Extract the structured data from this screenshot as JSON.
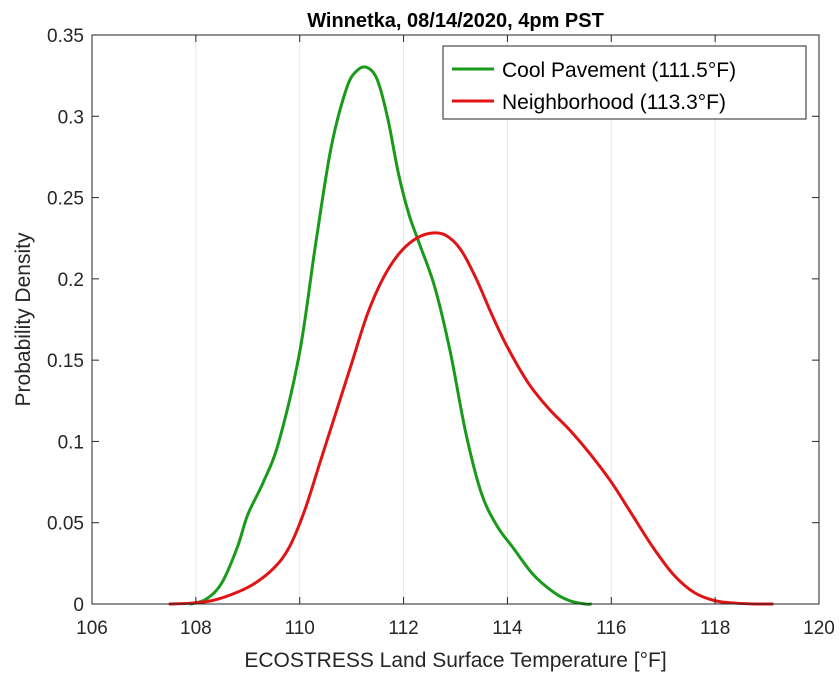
{
  "chart_data": {
    "type": "line",
    "title": "Winnetka, 08/14/2020, 4pm PST",
    "xlabel": "ECOSTRESS Land Surface Temperature [°F]",
    "ylabel": "Probability Density",
    "xlim": [
      106,
      120
    ],
    "ylim": [
      0,
      0.35
    ],
    "xticks": [
      106,
      108,
      110,
      112,
      114,
      116,
      118,
      120
    ],
    "yticks": [
      0,
      0.05,
      0.1,
      0.15,
      0.2,
      0.25,
      0.3,
      0.35
    ],
    "xtick_labels": [
      "106",
      "108",
      "110",
      "112",
      "114",
      "116",
      "118",
      "120"
    ],
    "ytick_labels": [
      "0",
      "0.05",
      "0.1",
      "0.15",
      "0.2",
      "0.25",
      "0.3",
      "0.35"
    ],
    "grid": "vertical",
    "legend_position": "top-right",
    "series": [
      {
        "name": "Cool Pavement (111.5°F)",
        "color": "#1a9a1a",
        "x": [
          107.9,
          108.2,
          108.5,
          108.8,
          109.0,
          109.3,
          109.6,
          110.0,
          110.3,
          110.6,
          110.9,
          111.1,
          111.3,
          111.5,
          111.7,
          111.9,
          112.1,
          112.3,
          112.6,
          112.9,
          113.2,
          113.5,
          113.8,
          114.1,
          114.5,
          114.9,
          115.2,
          115.5,
          115.6
        ],
        "y": [
          0.0,
          0.003,
          0.013,
          0.035,
          0.055,
          0.075,
          0.1,
          0.155,
          0.22,
          0.28,
          0.317,
          0.328,
          0.33,
          0.322,
          0.298,
          0.265,
          0.24,
          0.222,
          0.195,
          0.155,
          0.105,
          0.068,
          0.048,
          0.035,
          0.018,
          0.007,
          0.002,
          0.0,
          0.0
        ]
      },
      {
        "name": "Neighborhood (113.3°F)",
        "color": "#e01414",
        "x": [
          107.5,
          107.9,
          108.3,
          108.7,
          109.1,
          109.5,
          109.8,
          110.1,
          110.4,
          110.7,
          111.0,
          111.3,
          111.6,
          111.9,
          112.2,
          112.5,
          112.8,
          113.1,
          113.4,
          113.7,
          114.0,
          114.4,
          114.8,
          115.2,
          115.6,
          116.0,
          116.4,
          116.8,
          117.2,
          117.6,
          118.0,
          118.4,
          118.8,
          119.1
        ],
        "y": [
          0.0,
          0.0005,
          0.002,
          0.006,
          0.012,
          0.022,
          0.035,
          0.058,
          0.088,
          0.118,
          0.148,
          0.178,
          0.2,
          0.215,
          0.224,
          0.228,
          0.227,
          0.218,
          0.2,
          0.178,
          0.158,
          0.136,
          0.12,
          0.107,
          0.092,
          0.075,
          0.055,
          0.035,
          0.018,
          0.007,
          0.002,
          0.0005,
          0.0,
          0.0
        ]
      }
    ]
  }
}
